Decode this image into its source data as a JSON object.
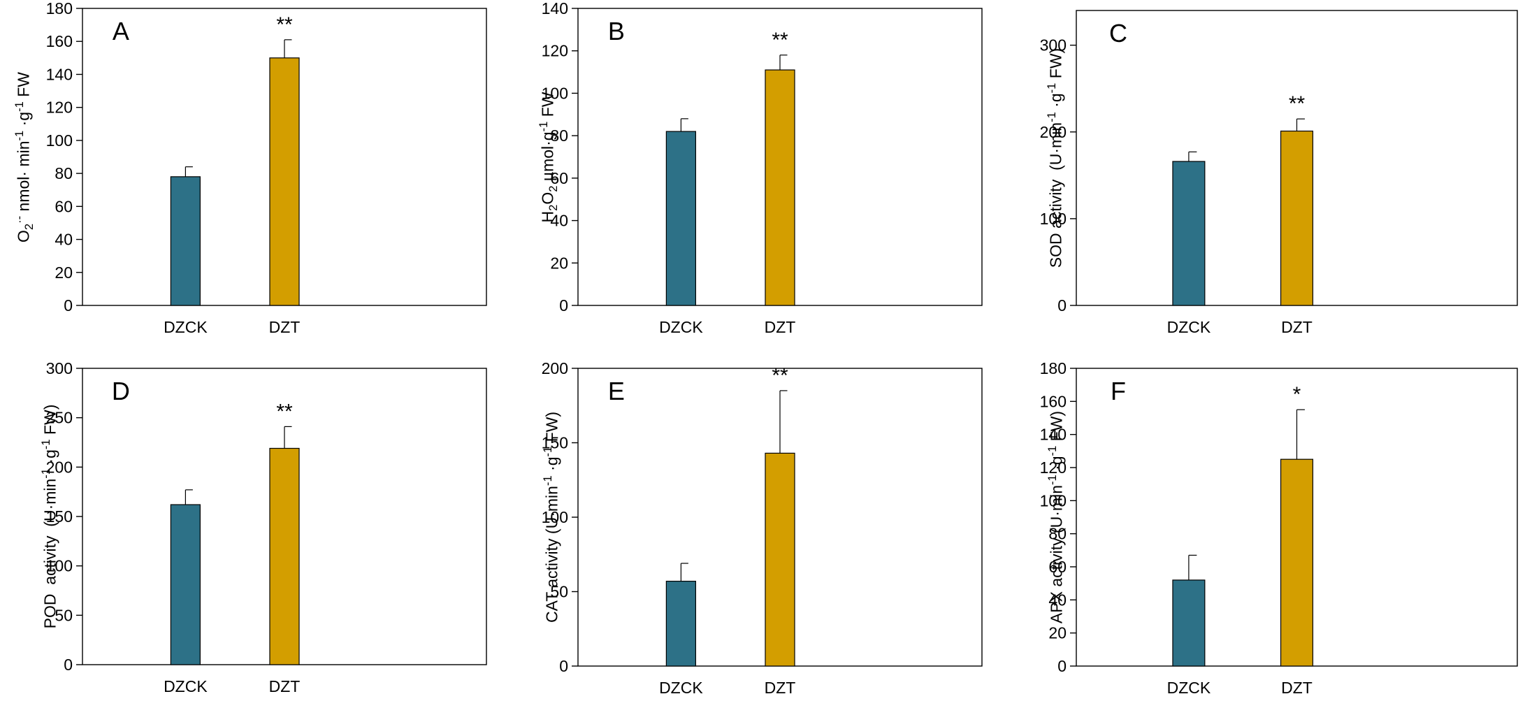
{
  "figure": {
    "colors": {
      "control": "#2D7187",
      "treatment": "#D39E00",
      "axis": "#000000"
    },
    "legend_note": ""
  },
  "chart_data": [
    {
      "type": "bar",
      "panel": "A",
      "title": "",
      "xlabel": "",
      "ylabel": "O2·- nmol· min-1 ·g-1 FW",
      "categories": [
        "DZCK",
        "DZT"
      ],
      "values": [
        78,
        150
      ],
      "errors": [
        6,
        11
      ],
      "significance": [
        "",
        "**"
      ],
      "ylim": [
        0,
        180
      ],
      "yticks": [
        0,
        20,
        40,
        60,
        80,
        100,
        120,
        140,
        160,
        180
      ]
    },
    {
      "type": "bar",
      "panel": "B",
      "title": "",
      "xlabel": "",
      "ylabel": "H2O2 µmol·g-1 FW",
      "categories": [
        "DZCK",
        "DZT"
      ],
      "values": [
        82,
        111
      ],
      "errors": [
        6,
        7
      ],
      "significance": [
        "",
        "**"
      ],
      "ylim": [
        0,
        140
      ],
      "yticks": [
        0,
        20,
        40,
        60,
        80,
        100,
        120,
        140
      ]
    },
    {
      "type": "bar",
      "panel": "C",
      "title": "",
      "xlabel": "",
      "ylabel": "SOD activity  (U·min-1 ·g-1 FW)",
      "categories": [
        "DZCK",
        "DZT"
      ],
      "values": [
        166,
        201
      ],
      "errors": [
        11,
        14
      ],
      "significance": [
        "",
        "**"
      ],
      "ylim": [
        0,
        340
      ],
      "yticks": [
        0,
        100,
        200,
        300
      ]
    },
    {
      "type": "bar",
      "panel": "D",
      "title": "",
      "xlabel": "",
      "ylabel": "POD  activity  (U·min-1 ·g-1 FW)",
      "categories": [
        "DZCK",
        "DZT"
      ],
      "values": [
        162,
        219
      ],
      "errors": [
        15,
        22
      ],
      "significance": [
        "",
        "**"
      ],
      "ylim": [
        0,
        300
      ],
      "yticks": [
        0,
        50,
        100,
        150,
        200,
        250,
        300
      ]
    },
    {
      "type": "bar",
      "panel": "E",
      "title": "",
      "xlabel": "",
      "ylabel": "CAT activity (U·min-1 ·g-1 FW)",
      "categories": [
        "DZCK",
        "DZT"
      ],
      "values": [
        57,
        143
      ],
      "errors": [
        12,
        42
      ],
      "significance": [
        "",
        "**"
      ],
      "ylim": [
        0,
        200
      ],
      "yticks": [
        0,
        50,
        100,
        150,
        200
      ]
    },
    {
      "type": "bar",
      "panel": "F",
      "title": "",
      "xlabel": "",
      "ylabel": "APX activity (U·min-1 ·g-1 FW)",
      "categories": [
        "DZCK",
        "DZT"
      ],
      "values": [
        52,
        125
      ],
      "errors": [
        15,
        30
      ],
      "significance": [
        "",
        "*"
      ],
      "ylim": [
        0,
        180
      ],
      "yticks": [
        0,
        20,
        40,
        60,
        80,
        100,
        120,
        140,
        160,
        180
      ]
    }
  ]
}
